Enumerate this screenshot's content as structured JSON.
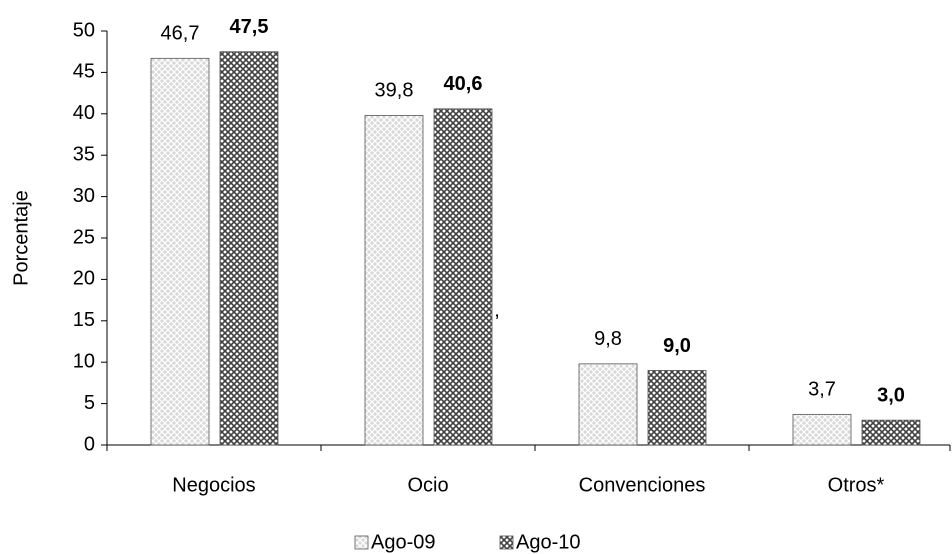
{
  "chart_data": {
    "type": "bar",
    "y_label": "Porcentaje",
    "categories": [
      "Negocios",
      "Ocio",
      "Convenciones",
      "Otros*"
    ],
    "series": [
      {
        "name": "Ago-09",
        "color": "#d9d9d9",
        "values": [
          46.7,
          39.8,
          9.8,
          3.7
        ],
        "value_labels": [
          "46,7",
          "39,8",
          "9,8",
          "3,7"
        ]
      },
      {
        "name": "Ago-10",
        "color": "#404040",
        "values": [
          47.5,
          40.6,
          9.0,
          3.0
        ],
        "value_labels": [
          "47,5",
          "40,6",
          "9,0",
          "3,0"
        ]
      }
    ],
    "annotation": ",",
    "ylim": [
      0,
      50
    ],
    "yticks": [
      0,
      5,
      10,
      15,
      20,
      25,
      30,
      35,
      40,
      45,
      50
    ],
    "legend": "bottom"
  }
}
